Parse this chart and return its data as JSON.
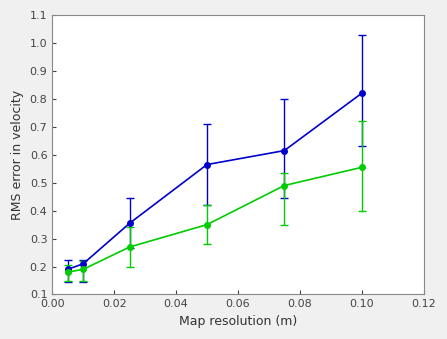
{
  "x": [
    0.005,
    0.01,
    0.025,
    0.05,
    0.075,
    0.1
  ],
  "blue_y": [
    0.19,
    0.21,
    0.355,
    0.565,
    0.615,
    0.82
  ],
  "blue_yerr_lower": [
    0.045,
    0.065,
    0.09,
    0.145,
    0.17,
    0.19
  ],
  "blue_yerr_upper": [
    0.035,
    0.015,
    0.09,
    0.145,
    0.185,
    0.21
  ],
  "green_y": [
    0.18,
    0.19,
    0.27,
    0.35,
    0.49,
    0.555
  ],
  "green_yerr_lower": [
    0.03,
    0.04,
    0.07,
    0.07,
    0.14,
    0.155
  ],
  "green_yerr_upper": [
    0.025,
    0.03,
    0.07,
    0.07,
    0.045,
    0.165
  ],
  "blue_color": "#0000cc",
  "green_color": "#00cc00",
  "marker_size": 4,
  "linewidth": 1.2,
  "xlabel": "Map resolution (m)",
  "ylabel": "RMS error in velocity",
  "xlim": [
    0,
    0.12
  ],
  "ylim": [
    0.1,
    1.1
  ],
  "xticks": [
    0,
    0.02,
    0.04,
    0.06,
    0.08,
    0.1,
    0.12
  ],
  "yticks": [
    0.1,
    0.2,
    0.3,
    0.4,
    0.5,
    0.6,
    0.7,
    0.8,
    0.9,
    1.0,
    1.1
  ],
  "fig_bg_color": "#f0f0f0",
  "plot_bg_color": "#ffffff",
  "spine_color": "#888888",
  "tick_color": "#444444"
}
